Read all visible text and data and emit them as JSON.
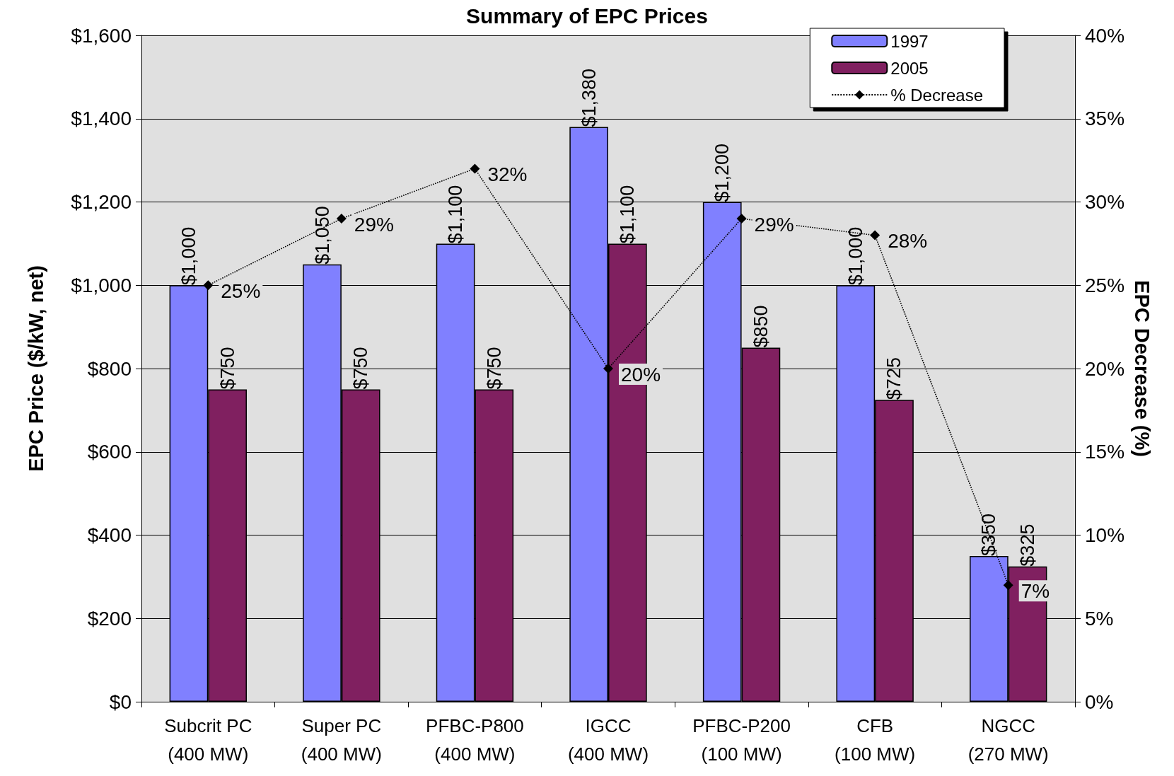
{
  "chart_data": {
    "type": "bar",
    "title": "Summary of EPC Prices",
    "ylabel": "EPC Price ($/kW, net)",
    "y2label": "EPC Decrease (%)",
    "categories": [
      "Subcrit PC\n(400 MW)",
      "Super PC\n(400 MW)",
      "PFBC-P800\n(400 MW)",
      "IGCC\n(400 MW)",
      "PFBC-P200\n(100 MW)",
      "CFB\n(100 MW)",
      "NGCC\n(270 MW)"
    ],
    "series": [
      {
        "name": "1997",
        "color": "#8080ff",
        "values": [
          1000,
          1050,
          1100,
          1380,
          1200,
          1000,
          350
        ],
        "value_labels": [
          "$1,000",
          "$1,050",
          "$1,100",
          "$1,380",
          "$1,200",
          "$1,000",
          "$350"
        ]
      },
      {
        "name": "2005",
        "color": "#802060",
        "values": [
          750,
          750,
          750,
          1100,
          850,
          725,
          325
        ],
        "value_labels": [
          "$750",
          "$750",
          "$750",
          "$1,100",
          "$850",
          "$725",
          "$325"
        ]
      },
      {
        "name": "% Decrease",
        "type": "line",
        "axis": "y2",
        "color": "#000000",
        "marker": "diamond",
        "line_style": "dotted",
        "values": [
          25,
          29,
          32,
          20,
          29,
          28,
          7
        ],
        "value_labels": [
          "25%",
          "29%",
          "32%",
          "20%",
          "29%",
          "28%",
          "7%"
        ]
      }
    ],
    "ylim": [
      0,
      1600
    ],
    "yticks": [
      {
        "value": 0,
        "label": "$0"
      },
      {
        "value": 200,
        "label": "$200"
      },
      {
        "value": 400,
        "label": "$400"
      },
      {
        "value": 600,
        "label": "$600"
      },
      {
        "value": 800,
        "label": "$800"
      },
      {
        "value": 1000,
        "label": "$1,000"
      },
      {
        "value": 1200,
        "label": "$1,200"
      },
      {
        "value": 1400,
        "label": "$1,400"
      },
      {
        "value": 1600,
        "label": "$1,600"
      }
    ],
    "y2lim": [
      0,
      40
    ],
    "y2ticks": [
      {
        "value": 0,
        "label": "0%"
      },
      {
        "value": 5,
        "label": "5%"
      },
      {
        "value": 10,
        "label": "10%"
      },
      {
        "value": 15,
        "label": "15%"
      },
      {
        "value": 20,
        "label": "20%"
      },
      {
        "value": 25,
        "label": "25%"
      },
      {
        "value": 30,
        "label": "30%"
      },
      {
        "value": 35,
        "label": "35%"
      },
      {
        "value": 40,
        "label": "40%"
      }
    ],
    "grid": "y",
    "legend": "top right"
  }
}
